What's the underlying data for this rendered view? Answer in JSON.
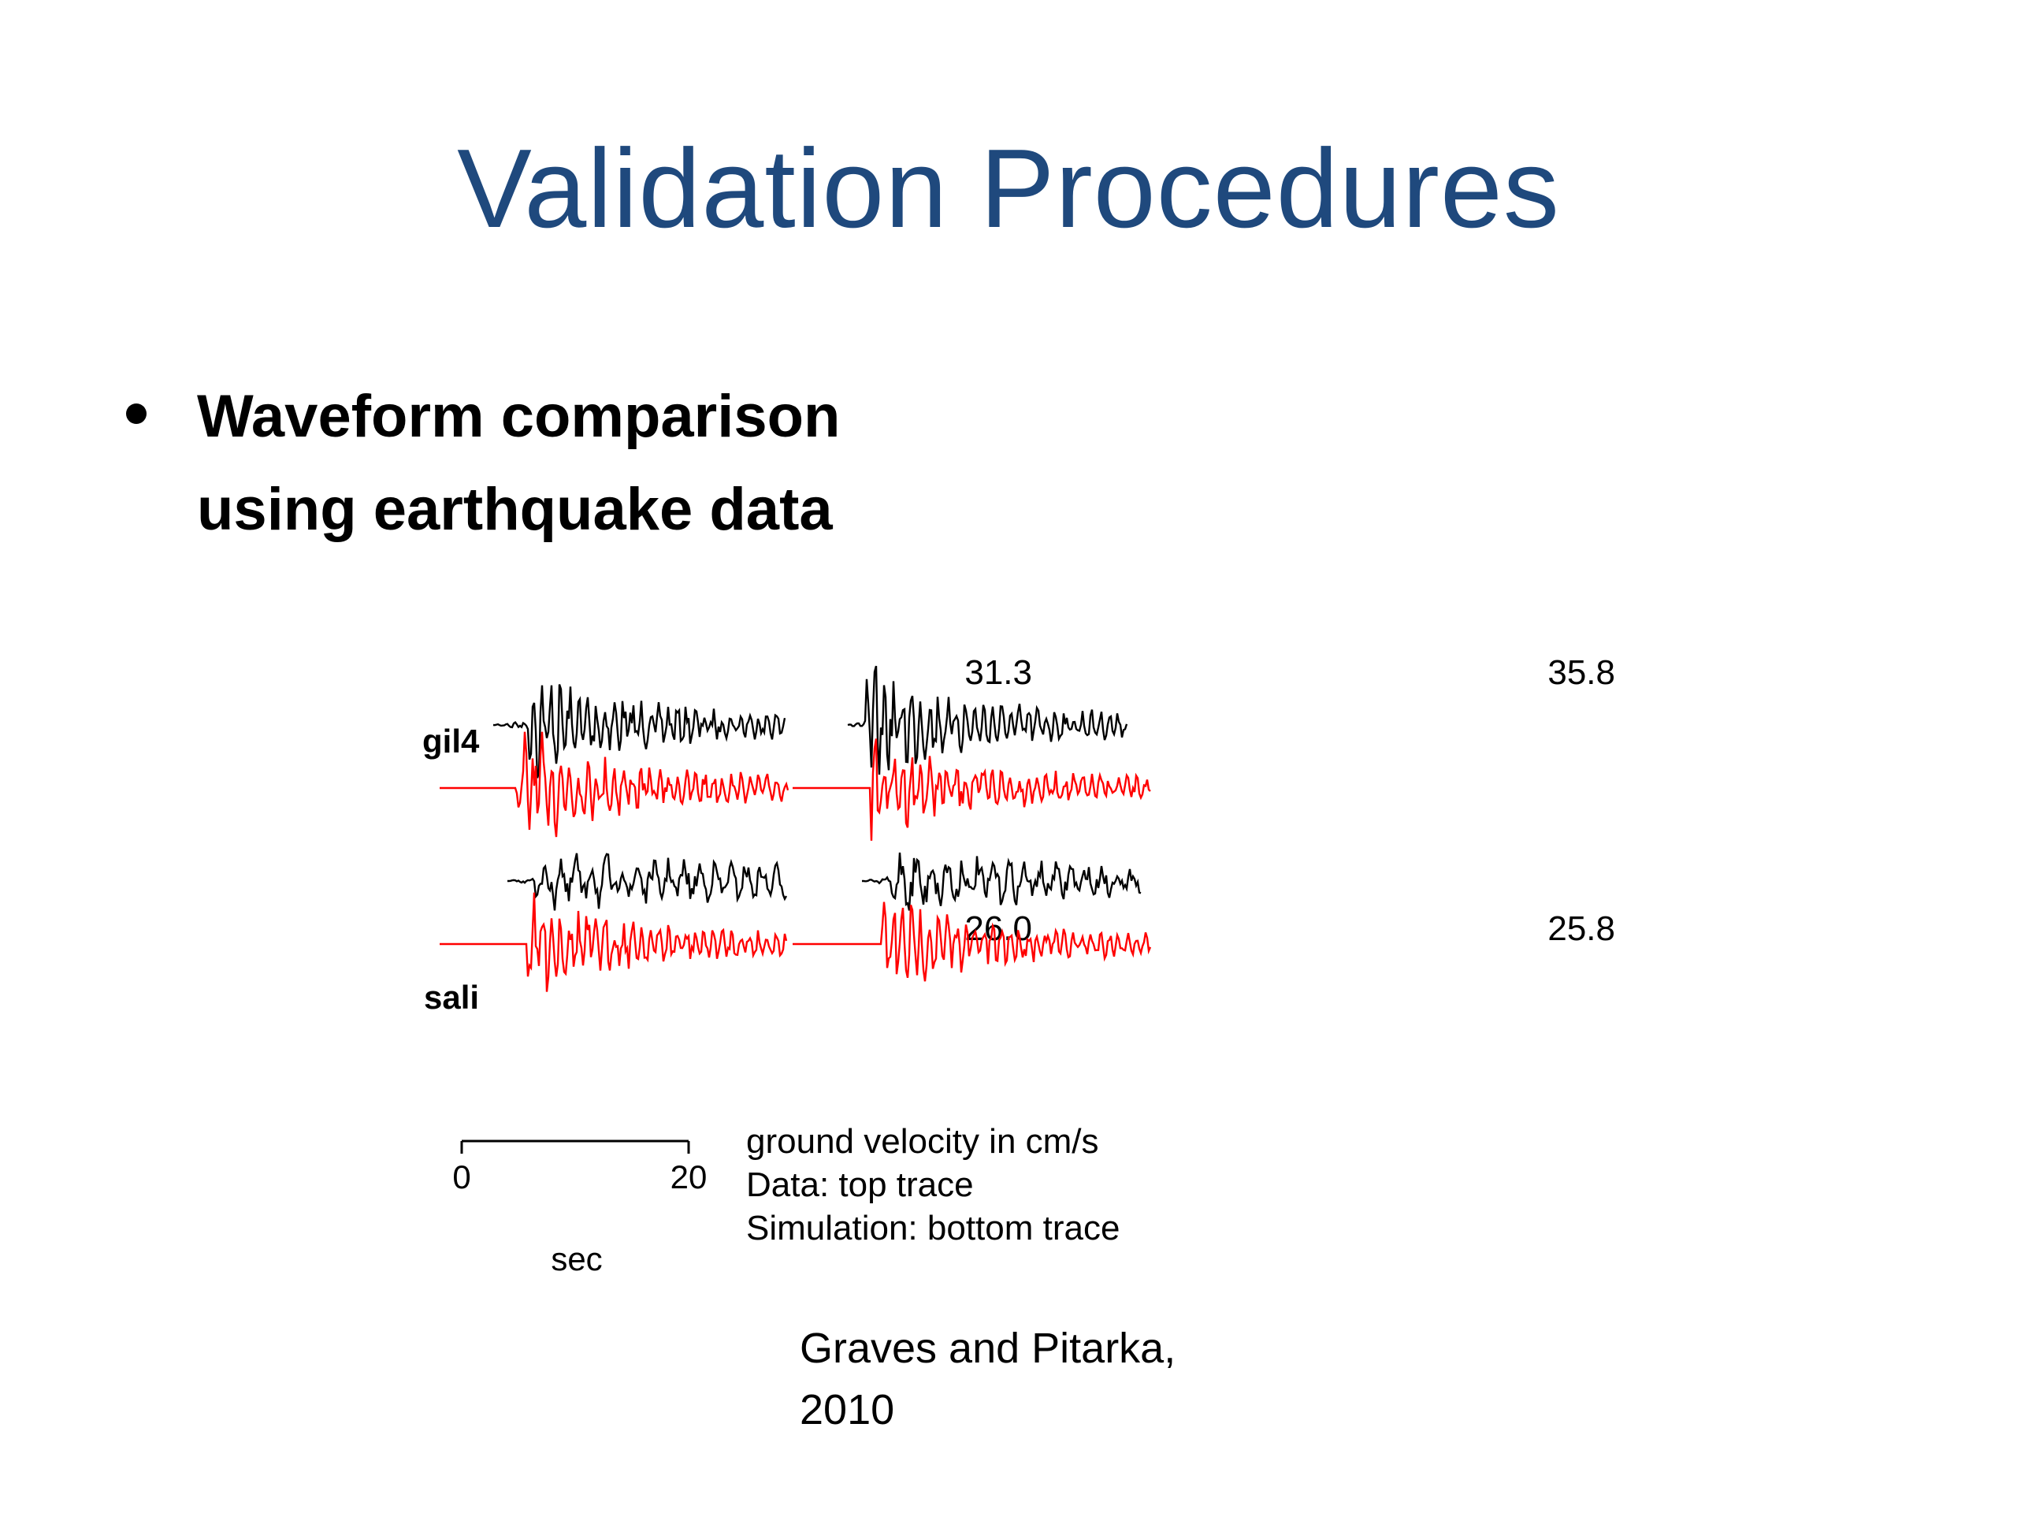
{
  "slide": {
    "title": "Validation Procedures",
    "bullet_line1": "Waveform comparison",
    "bullet_line2": "using earthquake data",
    "citation_line1": "Graves and Pitarka,",
    "citation_line2": "2010"
  },
  "figure": {
    "stations": [
      "gil4",
      "sali"
    ],
    "peak_values": [
      "31.3",
      "35.8",
      "26.0",
      "25.8"
    ],
    "scale_min": "0",
    "scale_max": "20",
    "scale_unit": "sec",
    "legend_line1": "ground velocity in cm/s",
    "legend_line2": "Data: top trace",
    "legend_line3": "Simulation: bottom trace",
    "data_color": "#000000",
    "simulation_color": "#ff0000"
  }
}
